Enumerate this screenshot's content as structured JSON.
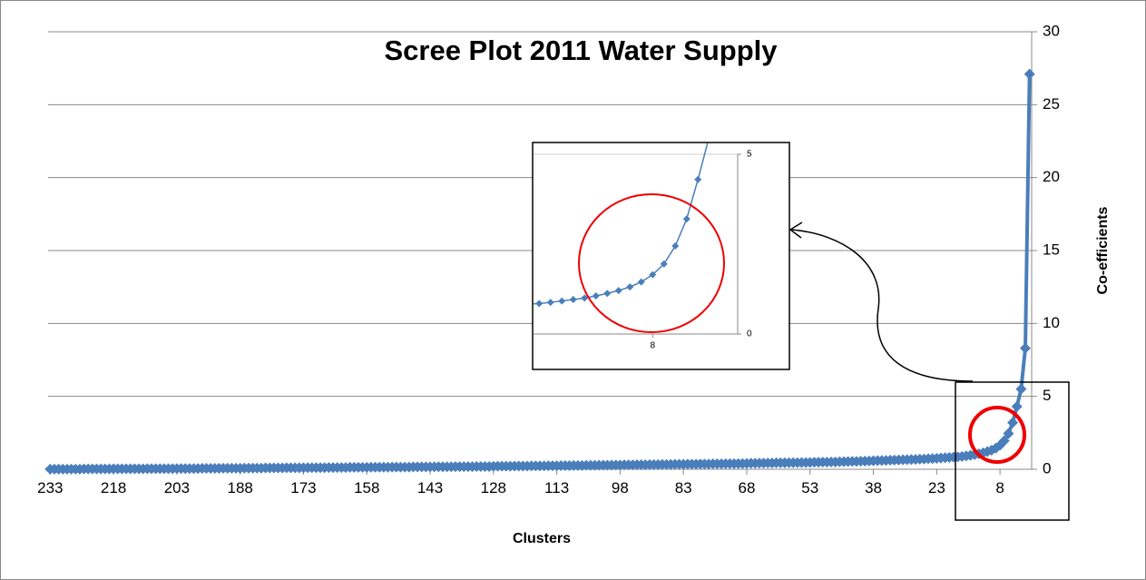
{
  "chart_data": {
    "type": "line",
    "title": "Scree Plot 2011 Water Supply",
    "x_label": "Clusters",
    "y_label": "Co-efficients",
    "color": "#4a7ebb",
    "grid": true,
    "xlim": [
      233.5,
      0.5
    ],
    "xticks": [
      233,
      218,
      203,
      188,
      173,
      158,
      143,
      128,
      113,
      98,
      83,
      68,
      53,
      38,
      23,
      8
    ],
    "ylim": [
      0,
      30
    ],
    "yticks": [
      0,
      5,
      10,
      15,
      20,
      25,
      30
    ],
    "x": [
      233,
      232,
      231,
      230,
      229,
      228,
      227,
      226,
      225,
      224,
      223,
      222,
      221,
      220,
      219,
      218,
      217,
      216,
      215,
      214,
      213,
      212,
      211,
      210,
      209,
      208,
      207,
      206,
      205,
      204,
      203,
      202,
      201,
      200,
      199,
      198,
      197,
      196,
      195,
      194,
      193,
      192,
      191,
      190,
      189,
      188,
      187,
      186,
      185,
      184,
      183,
      182,
      181,
      180,
      179,
      178,
      177,
      176,
      175,
      174,
      173,
      172,
      171,
      170,
      169,
      168,
      167,
      166,
      165,
      164,
      163,
      162,
      161,
      160,
      159,
      158,
      157,
      156,
      155,
      154,
      153,
      152,
      151,
      150,
      149,
      148,
      147,
      146,
      145,
      144,
      143,
      142,
      141,
      140,
      139,
      138,
      137,
      136,
      135,
      134,
      133,
      132,
      131,
      130,
      129,
      128,
      127,
      126,
      125,
      124,
      123,
      122,
      121,
      120,
      119,
      118,
      117,
      116,
      115,
      114,
      113,
      112,
      111,
      110,
      109,
      108,
      107,
      106,
      105,
      104,
      103,
      102,
      101,
      100,
      99,
      98,
      97,
      96,
      95,
      94,
      93,
      92,
      91,
      90,
      89,
      88,
      87,
      86,
      85,
      84,
      83,
      82,
      81,
      80,
      79,
      78,
      77,
      76,
      75,
      74,
      73,
      72,
      71,
      70,
      69,
      68,
      67,
      66,
      65,
      64,
      63,
      62,
      61,
      60,
      59,
      58,
      57,
      56,
      55,
      54,
      53,
      52,
      51,
      50,
      49,
      48,
      47,
      46,
      45,
      44,
      43,
      42,
      41,
      40,
      39,
      38,
      37,
      36,
      35,
      34,
      33,
      32,
      31,
      30,
      29,
      28,
      27,
      26,
      25,
      24,
      23,
      22,
      21,
      20,
      19,
      18,
      17,
      16,
      15,
      14,
      13,
      12,
      11,
      10,
      9,
      8,
      7,
      6,
      5,
      4,
      3,
      2,
      1
    ],
    "values": [
      0.01,
      0.01,
      0.01,
      0.01,
      0.01,
      0.01,
      0.01,
      0.01,
      0.02,
      0.02,
      0.02,
      0.02,
      0.02,
      0.02,
      0.02,
      0.03,
      0.03,
      0.03,
      0.03,
      0.03,
      0.03,
      0.03,
      0.03,
      0.04,
      0.04,
      0.04,
      0.04,
      0.04,
      0.04,
      0.04,
      0.05,
      0.05,
      0.05,
      0.05,
      0.05,
      0.05,
      0.06,
      0.06,
      0.06,
      0.06,
      0.06,
      0.07,
      0.07,
      0.07,
      0.07,
      0.07,
      0.08,
      0.08,
      0.08,
      0.08,
      0.08,
      0.09,
      0.09,
      0.09,
      0.09,
      0.09,
      0.1,
      0.1,
      0.1,
      0.1,
      0.1,
      0.11,
      0.11,
      0.11,
      0.11,
      0.11,
      0.12,
      0.12,
      0.12,
      0.12,
      0.12,
      0.13,
      0.13,
      0.13,
      0.13,
      0.13,
      0.14,
      0.14,
      0.14,
      0.14,
      0.14,
      0.15,
      0.15,
      0.15,
      0.15,
      0.15,
      0.16,
      0.16,
      0.16,
      0.16,
      0.16,
      0.17,
      0.17,
      0.17,
      0.17,
      0.17,
      0.18,
      0.18,
      0.18,
      0.18,
      0.18,
      0.19,
      0.19,
      0.19,
      0.19,
      0.2,
      0.21,
      0.21,
      0.21,
      0.21,
      0.22,
      0.22,
      0.22,
      0.22,
      0.23,
      0.23,
      0.23,
      0.23,
      0.24,
      0.24,
      0.24,
      0.25,
      0.25,
      0.25,
      0.26,
      0.26,
      0.26,
      0.27,
      0.27,
      0.27,
      0.28,
      0.28,
      0.28,
      0.29,
      0.29,
      0.29,
      0.3,
      0.3,
      0.3,
      0.31,
      0.31,
      0.31,
      0.32,
      0.32,
      0.32,
      0.33,
      0.33,
      0.33,
      0.34,
      0.34,
      0.34,
      0.35,
      0.35,
      0.35,
      0.36,
      0.36,
      0.36,
      0.37,
      0.37,
      0.37,
      0.38,
      0.38,
      0.38,
      0.39,
      0.39,
      0.4,
      0.41,
      0.41,
      0.42,
      0.42,
      0.43,
      0.43,
      0.44,
      0.44,
      0.44,
      0.45,
      0.45,
      0.45,
      0.46,
      0.46,
      0.47,
      0.48,
      0.48,
      0.49,
      0.49,
      0.5,
      0.5,
      0.51,
      0.52,
      0.53,
      0.54,
      0.54,
      0.55,
      0.56,
      0.57,
      0.58,
      0.59,
      0.6,
      0.61,
      0.62,
      0.63,
      0.64,
      0.65,
      0.66,
      0.67,
      0.68,
      0.69,
      0.7,
      0.72,
      0.73,
      0.75,
      0.77,
      0.79,
      0.81,
      0.83,
      0.85,
      0.88,
      0.92,
      0.96,
      1.0,
      1.06,
      1.13,
      1.21,
      1.31,
      1.45,
      1.65,
      1.95,
      2.45,
      3.2,
      4.3,
      5.5,
      8.3,
      27.1
    ],
    "inset": {
      "xlim": [
        18.5,
        0.5
      ],
      "xticks": [
        8
      ],
      "ylim": [
        0,
        5
      ],
      "yticks": [
        0,
        5
      ]
    }
  }
}
